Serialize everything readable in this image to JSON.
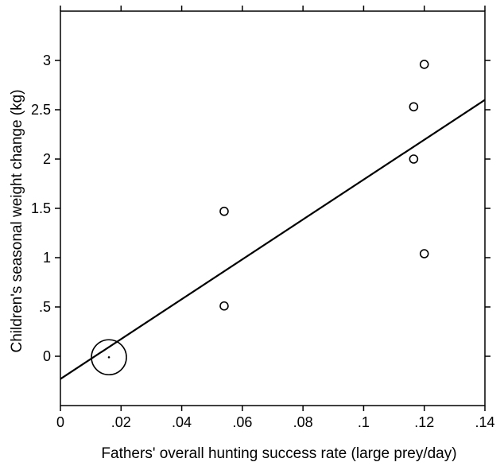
{
  "chart_data": {
    "type": "scatter",
    "title": "",
    "xlabel": "Fathers' overall hunting success rate (large prey/day)",
    "ylabel": "Children's seasonal weight change (kg)",
    "xlim": [
      0,
      0.14
    ],
    "ylim": [
      -0.5,
      3.5
    ],
    "x_ticks": [
      {
        "value": 0,
        "label": "0"
      },
      {
        "value": 0.02,
        "label": ".02"
      },
      {
        "value": 0.04,
        "label": ".04"
      },
      {
        "value": 0.06,
        "label": ".06"
      },
      {
        "value": 0.08,
        "label": ".08"
      },
      {
        "value": 0.1,
        "label": ".1"
      },
      {
        "value": 0.12,
        "label": ".12"
      },
      {
        "value": 0.14,
        "label": ".14"
      }
    ],
    "y_ticks": [
      {
        "value": 0,
        "label": "0"
      },
      {
        "value": 0.5,
        "label": ".5"
      },
      {
        "value": 1,
        "label": "1"
      },
      {
        "value": 1.5,
        "label": "1.5"
      },
      {
        "value": 2,
        "label": "2"
      },
      {
        "value": 2.5,
        "label": "2.5"
      },
      {
        "value": 3,
        "label": "3"
      }
    ],
    "points": [
      {
        "x": 0.016,
        "y": -0.01,
        "weight": "large"
      },
      {
        "x": 0.054,
        "y": 1.47,
        "weight": "normal"
      },
      {
        "x": 0.054,
        "y": 0.51,
        "weight": "normal"
      },
      {
        "x": 0.1165,
        "y": 2.53,
        "weight": "normal"
      },
      {
        "x": 0.1165,
        "y": 2.0,
        "weight": "normal"
      },
      {
        "x": 0.12,
        "y": 2.96,
        "weight": "normal"
      },
      {
        "x": 0.12,
        "y": 1.04,
        "weight": "normal"
      }
    ],
    "fit_line": {
      "x": [
        0,
        0.14
      ],
      "y": [
        -0.23,
        2.6
      ]
    },
    "grid": false,
    "legend": "none"
  }
}
